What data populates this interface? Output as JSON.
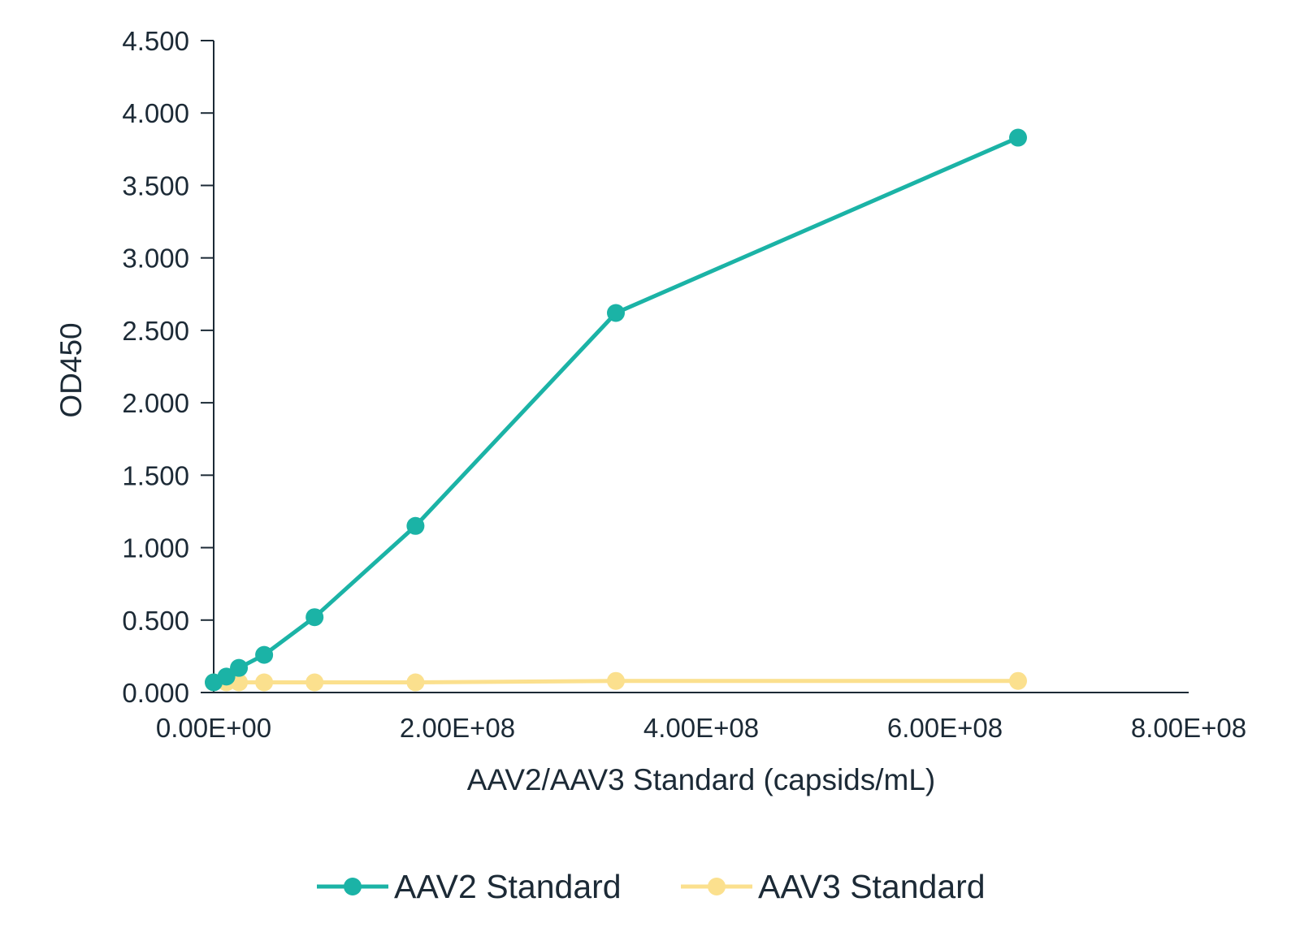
{
  "chart_data": {
    "type": "line",
    "title": "",
    "xlabel": "AAV2/AAV3 Standard (capsids/mL)",
    "ylabel": "OD450",
    "xlim": [
      0,
      800000000
    ],
    "ylim": [
      0,
      4.5
    ],
    "x_ticks": [
      0,
      200000000,
      400000000,
      600000000,
      800000000
    ],
    "x_tick_labels": [
      "0.00E+00",
      "2.00E+08",
      "4.00E+08",
      "6.00E+08",
      "8.00E+08"
    ],
    "y_ticks": [
      0,
      0.5,
      1,
      1.5,
      2,
      2.5,
      3,
      3.5,
      4,
      4.5
    ],
    "y_tick_labels": [
      "0.000",
      "0.500",
      "1.000",
      "1.500",
      "2.000",
      "2.500",
      "3.000",
      "3.500",
      "4.000",
      "4.500"
    ],
    "grid": false,
    "legend_position": "bottom",
    "series": [
      {
        "name": "AAV2 Standard",
        "color": "#1bb3a6",
        "x": [
          0,
          10400000,
          20700000,
          41400000,
          82800000,
          165600000,
          330000000,
          660000000
        ],
        "y": [
          0.07,
          0.11,
          0.17,
          0.26,
          0.52,
          1.15,
          2.62,
          3.83
        ]
      },
      {
        "name": "AAV3 Standard",
        "color": "#fbe08e",
        "x": [
          0,
          10400000,
          20700000,
          41400000,
          82800000,
          165600000,
          330000000,
          660000000
        ],
        "y": [
          0.07,
          0.07,
          0.07,
          0.07,
          0.07,
          0.07,
          0.08,
          0.08
        ]
      }
    ]
  }
}
